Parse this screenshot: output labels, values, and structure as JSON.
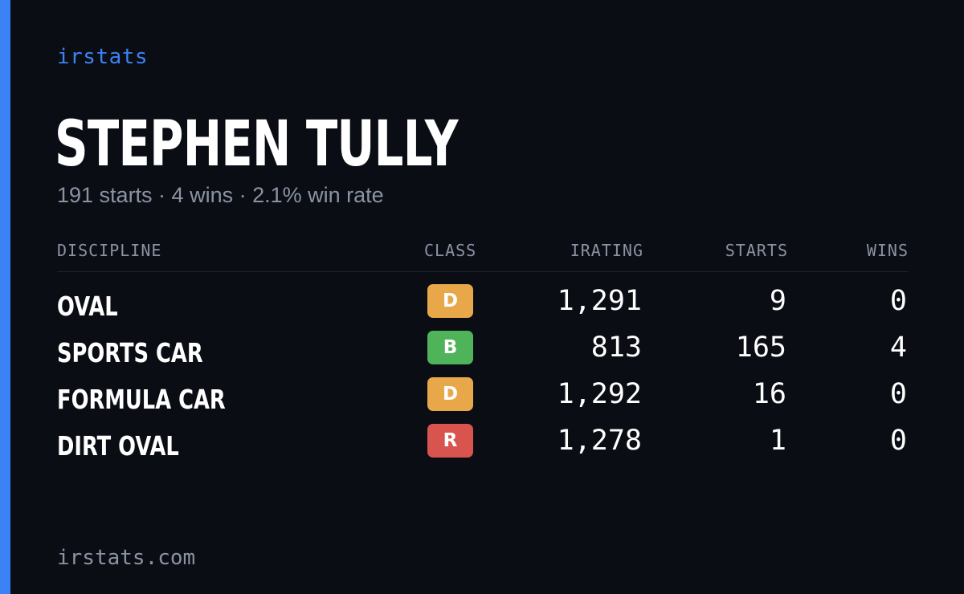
{
  "brand": "irstats",
  "driver": {
    "name": "STEPHEN TULLY",
    "summary": "191 starts · 4 wins · 2.1% win rate"
  },
  "table": {
    "headers": {
      "discipline": "DISCIPLINE",
      "class": "CLASS",
      "irating": "IRATING",
      "starts": "STARTS",
      "wins": "WINS"
    },
    "rows": [
      {
        "discipline": "OVAL",
        "class": "D",
        "class_color": "#e8a84a",
        "irating": "1,291",
        "starts": "9",
        "wins": "0"
      },
      {
        "discipline": "SPORTS CAR",
        "class": "B",
        "class_color": "#4fb35a",
        "irating": "813",
        "starts": "165",
        "wins": "4"
      },
      {
        "discipline": "FORMULA CAR",
        "class": "D",
        "class_color": "#e8a84a",
        "irating": "1,292",
        "starts": "16",
        "wins": "0"
      },
      {
        "discipline": "DIRT OVAL",
        "class": "R",
        "class_color": "#d9534f",
        "irating": "1,278",
        "starts": "1",
        "wins": "0"
      }
    ]
  },
  "footer": "irstats.com",
  "colors": {
    "background": "#0a0d14",
    "accent": "#3b82f6",
    "muted_text": "#8b93a3"
  }
}
